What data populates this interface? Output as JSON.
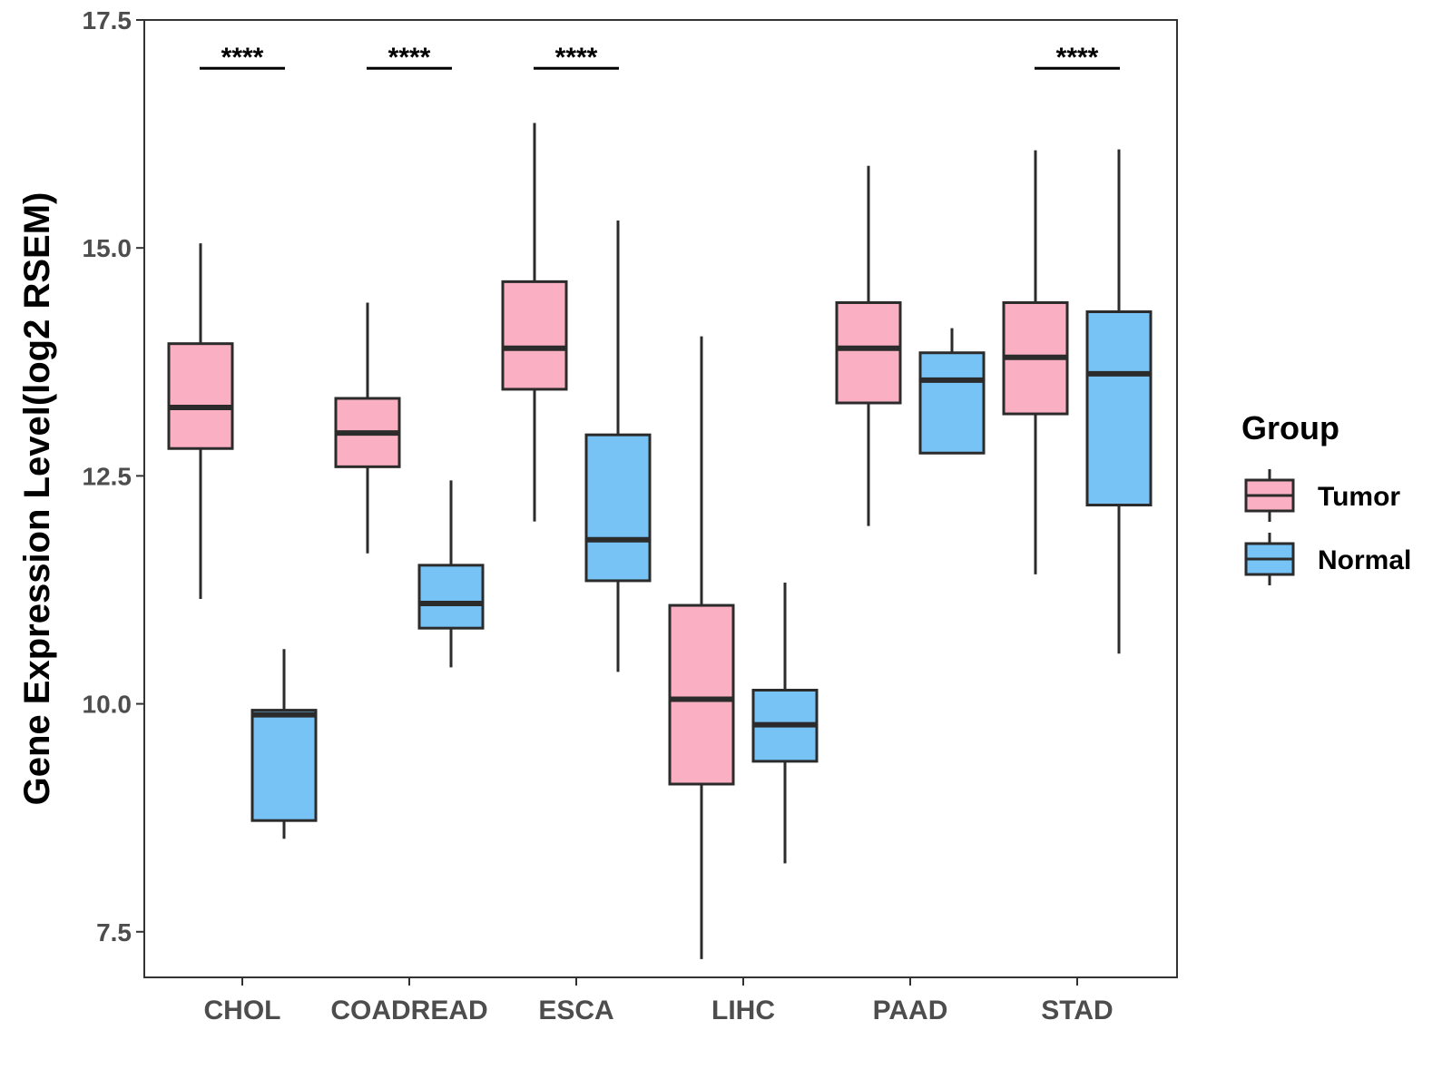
{
  "chart_data": {
    "type": "boxplot",
    "title": "",
    "xlabel": "",
    "ylabel": "Gene Expression Level(log2 RSEM)",
    "ylim": [
      7.0,
      17.5
    ],
    "yticks": [
      7.5,
      10.0,
      12.5,
      15.0,
      17.5
    ],
    "ytick_labels": [
      "7.5",
      "10.0",
      "12.5",
      "15.0",
      "17.5"
    ],
    "categories": [
      "CHOL",
      "COADREAD",
      "ESCA",
      "LIHC",
      "PAAD",
      "STAD"
    ],
    "legend": {
      "title": "Group",
      "position": "right"
    },
    "series": [
      {
        "name": "Tumor",
        "color": "#FAB0C2",
        "boxes": [
          {
            "whislo": 11.15,
            "q1": 12.8,
            "med": 13.25,
            "q3": 13.95,
            "whishi": 15.05
          },
          {
            "whislo": 11.65,
            "q1": 12.6,
            "med": 12.97,
            "q3": 13.35,
            "whishi": 14.4
          },
          {
            "whislo": 12.0,
            "q1": 13.45,
            "med": 13.9,
            "q3": 14.63,
            "whishi": 16.37
          },
          {
            "whislo": 7.2,
            "q1": 9.12,
            "med": 10.05,
            "q3": 11.08,
            "whishi": 14.03
          },
          {
            "whislo": 11.95,
            "q1": 13.3,
            "med": 13.9,
            "q3": 14.4,
            "whishi": 15.9
          },
          {
            "whislo": 11.42,
            "q1": 13.18,
            "med": 13.8,
            "q3": 14.4,
            "whishi": 16.07
          }
        ]
      },
      {
        "name": "Normal",
        "color": "#78C3F6",
        "boxes": [
          {
            "whislo": 8.52,
            "q1": 8.72,
            "med": 9.88,
            "q3": 9.93,
            "whishi": 10.6
          },
          {
            "whislo": 10.4,
            "q1": 10.83,
            "med": 11.1,
            "q3": 11.52,
            "whishi": 12.45
          },
          {
            "whislo": 10.35,
            "q1": 11.35,
            "med": 11.8,
            "q3": 12.95,
            "whishi": 15.3
          },
          {
            "whislo": 8.25,
            "q1": 9.37,
            "med": 9.77,
            "q3": 10.15,
            "whishi": 11.33
          },
          {
            "whislo": 12.75,
            "q1": 12.75,
            "med": 13.55,
            "q3": 13.85,
            "whishi": 14.12
          },
          {
            "whislo": 10.55,
            "q1": 12.18,
            "med": 13.62,
            "q3": 14.3,
            "whishi": 16.08
          }
        ]
      }
    ],
    "significance": [
      {
        "category": "CHOL",
        "label": "****",
        "y": 17.0
      },
      {
        "category": "COADREAD",
        "label": "****",
        "y": 17.0
      },
      {
        "category": "ESCA",
        "label": "****",
        "y": 17.0
      },
      {
        "category": "STAD",
        "label": "****",
        "y": 17.0
      }
    ]
  }
}
